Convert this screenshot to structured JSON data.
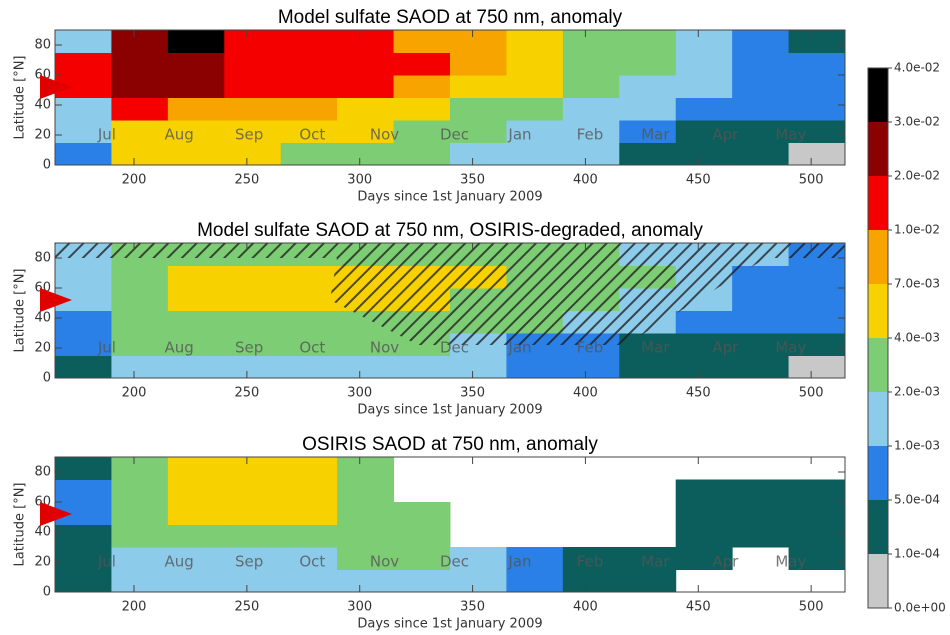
{
  "chart_data": [
    {
      "type": "heatmap",
      "title": "Model sulfate SAOD at 750 nm, anomaly",
      "xlabel": "Days since 1st January 2009",
      "ylabel": "Latitude [°N]",
      "xlim": [
        165,
        515
      ],
      "ylim": [
        0,
        90
      ],
      "xticks": [
        200,
        250,
        300,
        350,
        400,
        450,
        500
      ],
      "yticks": [
        0,
        20,
        40,
        60,
        80
      ],
      "month_ticks": [
        {
          "value": 188,
          "label": "Jul"
        },
        {
          "value": 220,
          "label": "Aug"
        },
        {
          "value": 251,
          "label": "Sep"
        },
        {
          "value": 279,
          "label": "Oct"
        },
        {
          "value": 311,
          "label": "Nov"
        },
        {
          "value": 342,
          "label": "Dec"
        },
        {
          "value": 371,
          "label": "Jan"
        },
        {
          "value": 402,
          "label": "Feb"
        },
        {
          "value": 431,
          "label": "Mar"
        },
        {
          "value": 462,
          "label": "Apr"
        },
        {
          "value": 491,
          "label": "May"
        }
      ],
      "marker": {
        "y": 52,
        "color": "#e00000"
      },
      "xbins": [
        165,
        190,
        215,
        240,
        265,
        290,
        315,
        340,
        365,
        390,
        415,
        440,
        465,
        490,
        515
      ],
      "ybins": [
        0,
        15,
        30,
        45,
        60,
        75,
        90
      ],
      "z": [
        [
          0.0007,
          0.005,
          0.005,
          0.005,
          0.003,
          0.003,
          0.003,
          0.0015,
          0.0015,
          0.0015,
          0.0003,
          0.0003,
          0.0003,
          5e-05
        ],
        [
          0.0015,
          0.005,
          0.005,
          0.005,
          0.005,
          0.005,
          0.003,
          0.003,
          0.0015,
          0.0015,
          0.0007,
          0.0003,
          0.0003,
          0.0003
        ],
        [
          0.0015,
          0.015,
          0.008,
          0.008,
          0.008,
          0.005,
          0.005,
          0.003,
          0.003,
          0.0015,
          0.0015,
          0.0007,
          0.0007,
          0.0007
        ],
        [
          0.015,
          0.025,
          0.025,
          0.015,
          0.015,
          0.015,
          0.008,
          0.005,
          0.005,
          0.003,
          0.0015,
          0.0015,
          0.0007,
          0.0007
        ],
        [
          0.015,
          0.025,
          0.025,
          0.015,
          0.015,
          0.015,
          0.015,
          0.008,
          0.005,
          0.003,
          0.003,
          0.0015,
          0.0007,
          0.0007
        ],
        [
          0.0015,
          0.025,
          0.035,
          0.015,
          0.015,
          0.015,
          0.008,
          0.008,
          0.005,
          0.003,
          0.003,
          0.0015,
          0.0007,
          0.0003
        ]
      ]
    },
    {
      "type": "heatmap",
      "title": "Model sulfate SAOD at 750 nm, OSIRIS-degraded, anomaly",
      "xlabel": "Days since 1st January 2009",
      "ylabel": "Latitude [°N]",
      "xlim": [
        165,
        515
      ],
      "ylim": [
        0,
        90
      ],
      "xticks": [
        200,
        250,
        300,
        350,
        400,
        450,
        500
      ],
      "yticks": [
        0,
        20,
        40,
        60,
        80
      ],
      "month_ticks": [
        {
          "value": 188,
          "label": "Jul"
        },
        {
          "value": 220,
          "label": "Aug"
        },
        {
          "value": 251,
          "label": "Sep"
        },
        {
          "value": 279,
          "label": "Oct"
        },
        {
          "value": 311,
          "label": "Nov"
        },
        {
          "value": 342,
          "label": "Dec"
        },
        {
          "value": 371,
          "label": "Jan"
        },
        {
          "value": 402,
          "label": "Feb"
        },
        {
          "value": 431,
          "label": "Mar"
        },
        {
          "value": 462,
          "label": "Apr"
        },
        {
          "value": 491,
          "label": "May"
        }
      ],
      "marker": {
        "y": 52,
        "color": "#e00000"
      },
      "xbins": [
        165,
        190,
        215,
        240,
        265,
        290,
        315,
        340,
        365,
        390,
        415,
        440,
        465,
        490,
        515
      ],
      "ybins": [
        0,
        15,
        30,
        45,
        60,
        75,
        90
      ],
      "z": [
        [
          0.0003,
          0.0015,
          0.0015,
          0.0015,
          0.0015,
          0.0015,
          0.0015,
          0.0015,
          0.0007,
          0.0007,
          0.0003,
          0.0003,
          0.0003,
          5e-05
        ],
        [
          0.0007,
          0.003,
          0.003,
          0.003,
          0.003,
          0.003,
          0.003,
          0.0015,
          0.0007,
          0.0007,
          0.0003,
          0.0003,
          0.0003,
          0.0003
        ],
        [
          0.0007,
          0.003,
          0.003,
          0.003,
          0.003,
          0.003,
          0.003,
          0.003,
          0.003,
          0.0015,
          0.0015,
          0.0007,
          0.0007,
          0.0007
        ],
        [
          0.0015,
          0.003,
          0.005,
          0.005,
          0.005,
          0.005,
          0.005,
          0.003,
          0.003,
          0.003,
          0.0015,
          0.0015,
          0.0007,
          0.0007
        ],
        [
          0.0015,
          0.003,
          0.005,
          0.005,
          0.005,
          0.005,
          0.005,
          0.005,
          0.003,
          0.003,
          0.003,
          0.0015,
          0.0007,
          0.0007
        ],
        [
          0.0015,
          0.003,
          0.003,
          0.003,
          0.003,
          0.003,
          0.003,
          0.003,
          0.003,
          0.003,
          0.0015,
          0.0015,
          0.0015,
          0.0007
        ]
      ]
    },
    {
      "type": "heatmap",
      "title": "OSIRIS SAOD at 750 nm, anomaly",
      "xlabel": "Days since 1st January 2009",
      "ylabel": "Latitude [°N]",
      "xlim": [
        165,
        515
      ],
      "ylim": [
        0,
        90
      ],
      "xticks": [
        200,
        250,
        300,
        350,
        400,
        450,
        500
      ],
      "yticks": [
        0,
        20,
        40,
        60,
        80
      ],
      "month_ticks": [
        {
          "value": 188,
          "label": "Jul"
        },
        {
          "value": 220,
          "label": "Aug"
        },
        {
          "value": 251,
          "label": "Sep"
        },
        {
          "value": 279,
          "label": "Oct"
        },
        {
          "value": 311,
          "label": "Nov"
        },
        {
          "value": 342,
          "label": "Dec"
        },
        {
          "value": 371,
          "label": "Jan"
        },
        {
          "value": 402,
          "label": "Feb"
        },
        {
          "value": 431,
          "label": "Mar"
        },
        {
          "value": 462,
          "label": "Apr"
        },
        {
          "value": 491,
          "label": "May"
        }
      ],
      "marker": {
        "y": 52,
        "color": "#e00000"
      },
      "xbins": [
        165,
        190,
        215,
        240,
        265,
        290,
        315,
        340,
        365,
        390,
        415,
        440,
        465,
        490,
        515
      ],
      "ybins": [
        0,
        15,
        30,
        45,
        60,
        75,
        90
      ],
      "z": [
        [
          0.0003,
          0.0015,
          0.0015,
          0.0015,
          0.0015,
          0.0015,
          0.0015,
          0.0015,
          0.0007,
          0.0003,
          0.0003,
          null,
          null,
          null
        ],
        [
          0.0003,
          0.0015,
          0.0015,
          0.0015,
          0.0015,
          0.003,
          0.003,
          0.0015,
          0.0007,
          0.0003,
          0.0003,
          0.0003,
          null,
          0.0003
        ],
        [
          0.0003,
          0.003,
          0.003,
          0.003,
          0.003,
          0.003,
          0.003,
          null,
          null,
          null,
          null,
          0.0003,
          0.0003,
          0.0003
        ],
        [
          0.0007,
          0.003,
          0.005,
          0.005,
          0.005,
          0.003,
          0.003,
          null,
          null,
          null,
          null,
          0.0003,
          0.0003,
          0.0003
        ],
        [
          0.0007,
          0.003,
          0.005,
          0.005,
          0.005,
          0.003,
          null,
          null,
          null,
          null,
          null,
          0.0003,
          0.0003,
          0.0003
        ],
        [
          0.0003,
          0.003,
          0.005,
          0.005,
          0.005,
          0.003,
          null,
          null,
          null,
          null,
          null,
          null,
          null,
          null
        ]
      ]
    },
    {
      "type": "colorbar",
      "levels": [
        {
          "value": 0,
          "label": "0.0e+00"
        },
        {
          "value": 0.0001,
          "label": "1.0e-04"
        },
        {
          "value": 0.0005,
          "label": "5.0e-04"
        },
        {
          "value": 0.001,
          "label": "1.0e-03"
        },
        {
          "value": 0.002,
          "label": "2.0e-03"
        },
        {
          "value": 0.004,
          "label": "4.0e-03"
        },
        {
          "value": 0.007,
          "label": "7.0e-03"
        },
        {
          "value": 0.01,
          "label": "1.0e-02"
        },
        {
          "value": 0.02,
          "label": "2.0e-02"
        },
        {
          "value": 0.03,
          "label": "3.0e-02"
        },
        {
          "value": 0.04,
          "label": "4.0e-02"
        }
      ],
      "colors": [
        "#c8c8c8",
        "#0b5e5c",
        "#2a80e6",
        "#8ccbea",
        "#7dcd74",
        "#f7d200",
        "#f7a300",
        "#f50000",
        "#8b0000",
        "#000000"
      ]
    }
  ]
}
